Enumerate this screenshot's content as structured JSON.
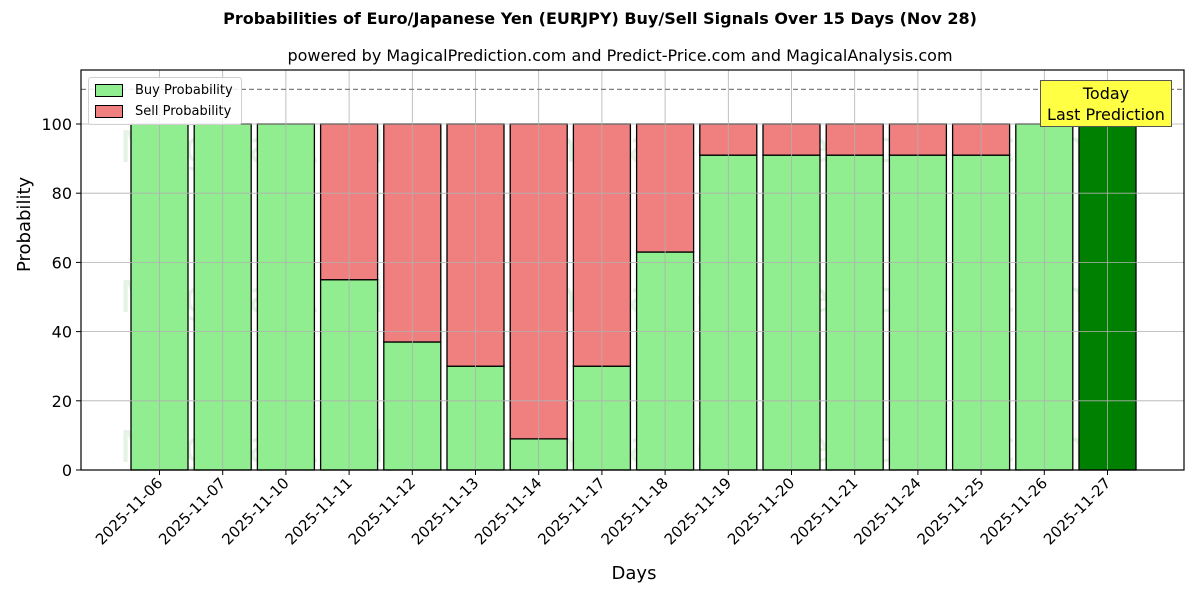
{
  "chart_data": {
    "type": "bar",
    "stacked": true,
    "title": "Probabilities of Euro/Japanese Yen (EURJPY) Buy/Sell Signals Over 15 Days (Nov 28)",
    "subtitle": "powered by MagicalPrediction.com and Predict-Price.com and MagicalAnalysis.com",
    "xlabel": "Days",
    "ylabel": "Probability",
    "ylim": [
      0,
      115
    ],
    "yticks": [
      0,
      20,
      40,
      60,
      80,
      100
    ],
    "grid": true,
    "legend_position": "upper left",
    "categories": [
      "2025-11-06",
      "2025-11-07",
      "2025-11-10",
      "2025-11-11",
      "2025-11-12",
      "2025-11-13",
      "2025-11-14",
      "2025-11-17",
      "2025-11-18",
      "2025-11-19",
      "2025-11-20",
      "2025-11-21",
      "2025-11-24",
      "2025-11-25",
      "2025-11-26",
      "2025-11-27"
    ],
    "series": [
      {
        "name": "Buy Probability",
        "color": "#90ee90",
        "values": [
          100,
          100,
          100,
          55,
          37,
          30,
          9,
          30,
          63,
          91,
          91,
          91,
          91,
          91,
          100,
          100
        ]
      },
      {
        "name": "Sell Probability",
        "color": "#f08080",
        "values": [
          0,
          0,
          0,
          45,
          63,
          70,
          91,
          70,
          37,
          9,
          9,
          9,
          9,
          9,
          0,
          0
        ]
      }
    ],
    "highlight": {
      "index": 15,
      "color": "#008000"
    },
    "reference_line": {
      "y": 110,
      "style": "dashed",
      "color": "#808080"
    },
    "annotation": {
      "text": "Today\nLast Prediction",
      "line1": "Today",
      "line2": "Last Prediction",
      "background": "#ffff44"
    },
    "watermarks": [
      "MagicalAnalysis.com",
      "MagicalPrediction.com"
    ]
  }
}
